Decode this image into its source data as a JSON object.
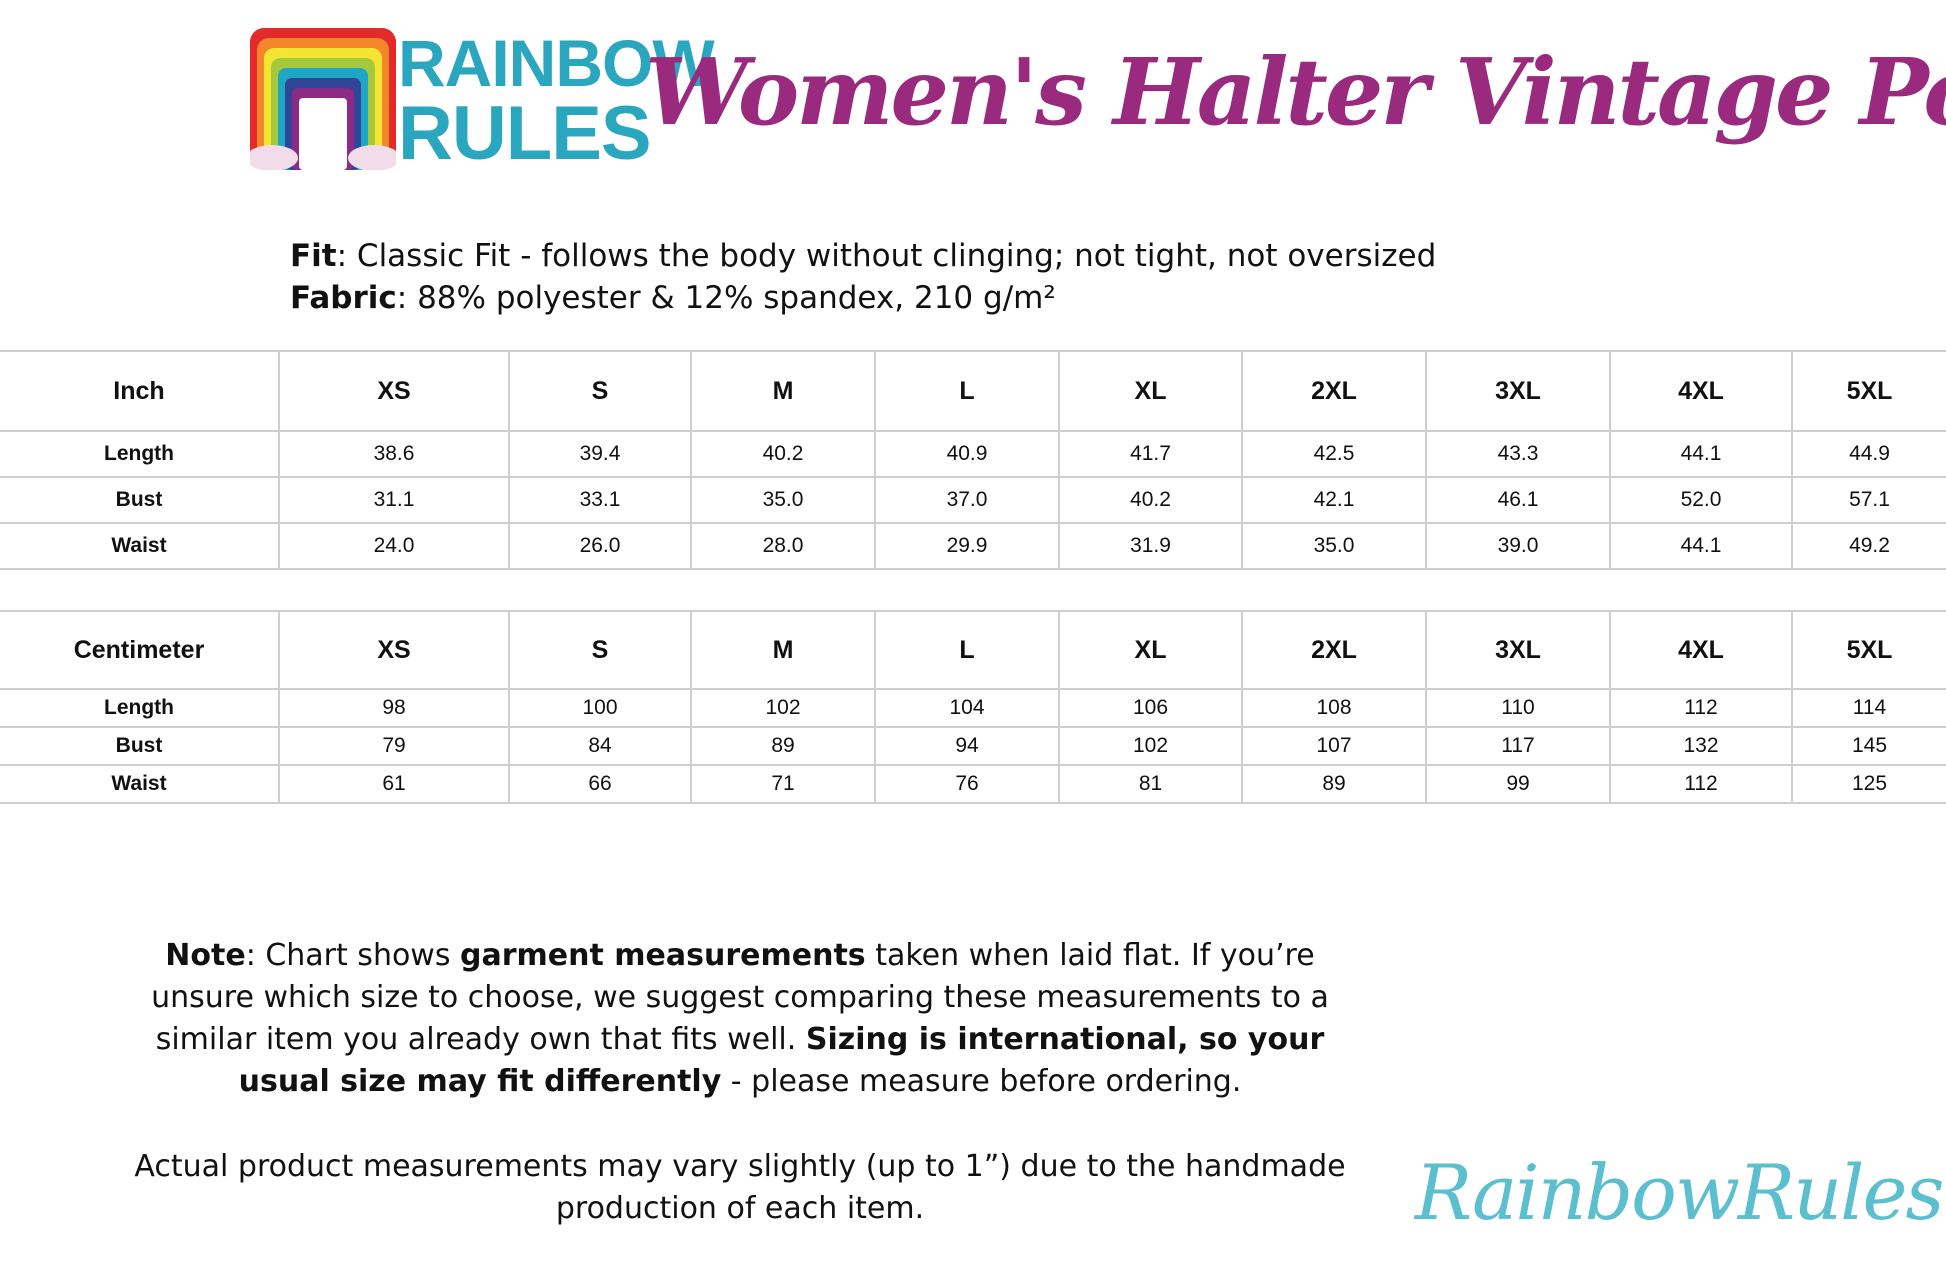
{
  "brand": {
    "logo_text_line1": "RAINBOW",
    "logo_text_line2": "RULES",
    "website": "RainbowRules.com",
    "colors": {
      "title": "#9a2a7e",
      "logo_text": "#2aa6bf",
      "website": "#5bbfd0"
    }
  },
  "title": "Women's Halter Vintage Pocket Dress",
  "specs": {
    "fit_label": "Fit",
    "fit_value": ": Classic Fit - follows the body without clinging; not tight, not oversized",
    "fabric_label": "Fabric",
    "fabric_value": ": 88% polyester & 12% spandex, 210 g/m²"
  },
  "inch_table": {
    "headers": [
      "Inch",
      "XS",
      "S",
      "M",
      "L",
      "XL",
      "2XL",
      "3XL",
      "4XL",
      "5XL"
    ],
    "rows": [
      [
        "Length",
        "38.6",
        "39.4",
        "40.2",
        "40.9",
        "41.7",
        "42.5",
        "43.3",
        "44.1",
        "44.9"
      ],
      [
        "Bust",
        "31.1",
        "33.1",
        "35.0",
        "37.0",
        "40.2",
        "42.1",
        "46.1",
        "52.0",
        "57.1"
      ],
      [
        "Waist",
        "24.0",
        "26.0",
        "28.0",
        "29.9",
        "31.9",
        "35.0",
        "39.0",
        "44.1",
        "49.2"
      ]
    ]
  },
  "cm_table": {
    "headers": [
      "Centimeter",
      "XS",
      "S",
      "M",
      "L",
      "XL",
      "2XL",
      "3XL",
      "4XL",
      "5XL"
    ],
    "rows": [
      [
        "Length",
        "98",
        "100",
        "102",
        "104",
        "106",
        "108",
        "110",
        "112",
        "114"
      ],
      [
        "Bust",
        "79",
        "84",
        "89",
        "94",
        "102",
        "107",
        "117",
        "132",
        "145"
      ],
      [
        "Waist",
        "61",
        "66",
        "71",
        "76",
        "81",
        "89",
        "99",
        "112",
        "125"
      ]
    ]
  },
  "note": {
    "label": "Note",
    "p1": ": Chart shows ",
    "bold1": "garment measurements",
    "p2": " taken when laid flat. If you’re unsure which size to choose, we suggest comparing these measurements to a similar item you already own that fits well. ",
    "bold2": "Sizing is international, so your usual size may fit differently",
    "p3": " - please measure before ordering.",
    "disclaimer": "Actual product measurements may vary slightly (up to 1”) due to the handmade production of each item."
  }
}
